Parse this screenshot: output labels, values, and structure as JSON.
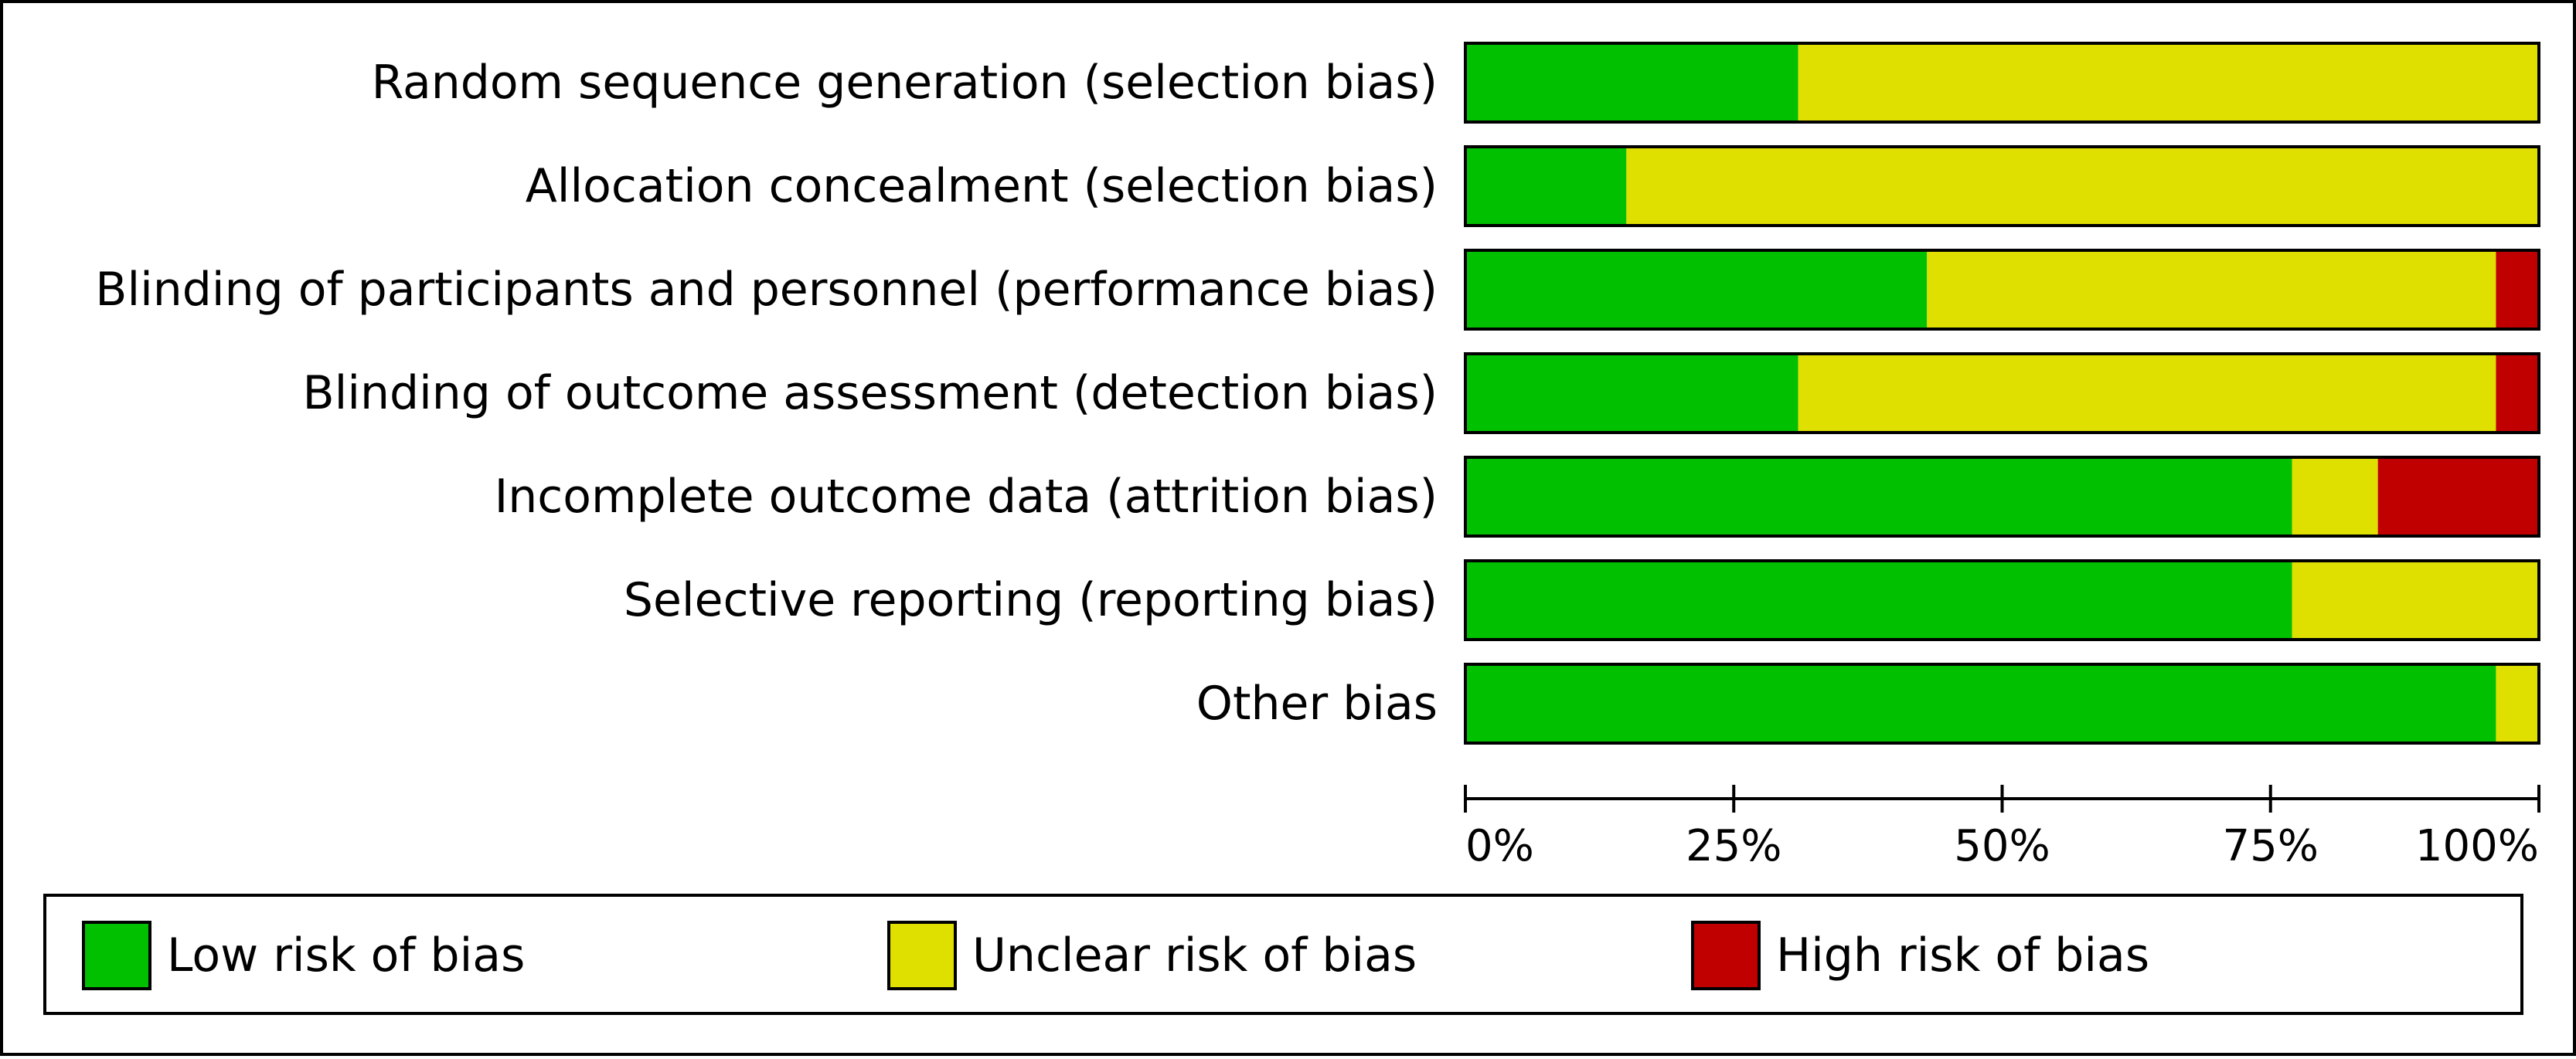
{
  "chart_data": {
    "type": "bar",
    "stacked": true,
    "orientation": "horizontal",
    "title": "",
    "xlabel": "",
    "ylabel": "",
    "xlim": [
      0,
      100
    ],
    "x_ticks": [
      "0%",
      "25%",
      "50%",
      "75%",
      "100%"
    ],
    "x_tick_values": [
      0,
      25,
      50,
      75,
      100
    ],
    "categories": [
      "Random sequence generation (selection bias)",
      "Allocation concealment (selection bias)",
      "Blinding of participants and personnel (performance bias)",
      "Blinding of outcome assessment (detection bias)",
      "Incomplete outcome data (attrition bias)",
      "Selective reporting (reporting bias)",
      "Other bias"
    ],
    "series": [
      {
        "name": "Low risk of bias",
        "color": "#00c000",
        "values": [
          31,
          15,
          43,
          31,
          77,
          77,
          96
        ]
      },
      {
        "name": "Unclear risk of bias",
        "color": "#e0e000",
        "values": [
          69,
          85,
          53,
          65,
          8,
          23,
          4
        ]
      },
      {
        "name": "High risk of bias",
        "color": "#c00000",
        "values": [
          0,
          0,
          4,
          4,
          15,
          0,
          0
        ]
      }
    ],
    "legend": {
      "position": "bottom",
      "entries": [
        "Low risk of bias",
        "Unclear risk of bias",
        "High risk of bias"
      ]
    }
  }
}
